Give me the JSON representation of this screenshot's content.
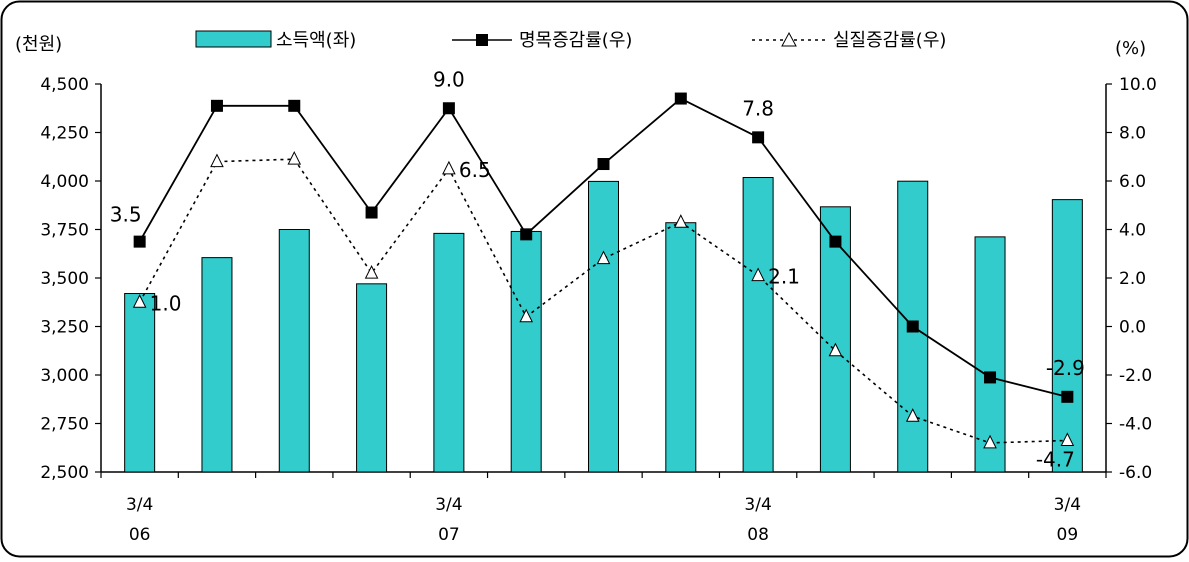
{
  "chart_data": {
    "type": "bar",
    "left_unit": "(천원)",
    "right_unit": "(%)",
    "legend": {
      "bar": "소득액(좌)",
      "nominal": "명목증감률(우)",
      "real": "실질증감률(우)"
    },
    "x_labels": [
      {
        "index": 0,
        "q": "3/4",
        "year": "06"
      },
      {
        "index": 4,
        "q": "3/4",
        "year": "07"
      },
      {
        "index": 8,
        "q": "3/4",
        "year": "08"
      },
      {
        "index": 12,
        "q": "3/4",
        "year": "09"
      }
    ],
    "left_axis": {
      "ylim": [
        2500,
        4500
      ],
      "ticks": [
        "2,500",
        "2,750",
        "3,000",
        "3,250",
        "3,500",
        "3,750",
        "4,000",
        "4,250",
        "4,500"
      ]
    },
    "right_axis": {
      "ylim": [
        -6.0,
        10.0
      ],
      "ticks": [
        "-6.0",
        "-4.0",
        "-2.0",
        "0.0",
        "2.0",
        "4.0",
        "6.0",
        "8.0",
        "10.0"
      ]
    },
    "series": [
      {
        "name": "소득액(좌)",
        "axis": "left",
        "values": [
          3420,
          3605,
          3750,
          3470,
          3730,
          3740,
          3998,
          3785,
          4018,
          3867,
          3999,
          3712,
          3904
        ]
      },
      {
        "name": "명목증감률(우)",
        "axis": "right",
        "values": [
          3.5,
          9.1,
          9.1,
          4.7,
          9.0,
          3.8,
          6.7,
          9.4,
          7.8,
          3.5,
          0.0,
          -2.1,
          -2.9
        ]
      },
      {
        "name": "실질증감률(우)",
        "axis": "right",
        "values": [
          1.0,
          6.8,
          6.9,
          2.2,
          6.5,
          0.4,
          2.8,
          4.3,
          2.1,
          -1.0,
          -3.7,
          -4.8,
          -4.7
        ]
      }
    ],
    "data_labels": [
      {
        "series": 1,
        "index": 0,
        "text": "3.5"
      },
      {
        "series": 1,
        "index": 4,
        "text": "9.0"
      },
      {
        "series": 1,
        "index": 8,
        "text": "7.8"
      },
      {
        "series": 1,
        "index": 12,
        "text": "-2.9"
      },
      {
        "series": 2,
        "index": 0,
        "text": "1.0"
      },
      {
        "series": 2,
        "index": 4,
        "text": "6.5"
      },
      {
        "series": 2,
        "index": 8,
        "text": "2.1"
      },
      {
        "series": 2,
        "index": 12,
        "text": "-4.7"
      }
    ],
    "colors": {
      "bar_fill": "#33CCCC",
      "bar_stroke": "#000000",
      "line": "#000000"
    }
  }
}
